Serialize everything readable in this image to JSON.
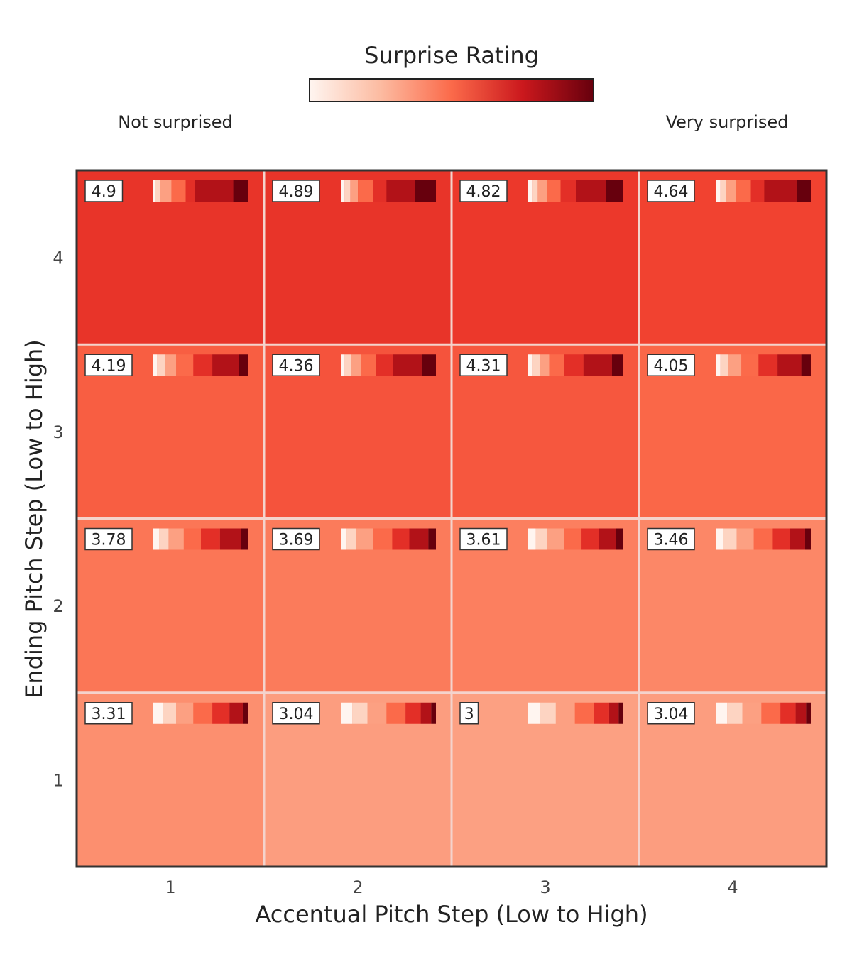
{
  "chart_data": {
    "type": "heatmap",
    "title": "",
    "xlabel": "Accentual Pitch Step (Low to High)",
    "ylabel": "Ending Pitch Step (Low to High)",
    "x_categories": [
      "1",
      "2",
      "3",
      "4"
    ],
    "y_categories": [
      "1",
      "2",
      "3",
      "4"
    ],
    "colorbar": {
      "title": "Surprise Rating",
      "low_label": "Not surprised",
      "high_label": "Very surprised",
      "range": [
        1,
        7
      ],
      "colormap": "Reds"
    },
    "grid": true,
    "cells": [
      {
        "x": 1,
        "y": 4,
        "value": 4.9,
        "label": "4.9",
        "distribution": [
          0.02,
          0.05,
          0.12,
          0.15,
          0.1,
          0.4,
          0.16
        ]
      },
      {
        "x": 2,
        "y": 4,
        "value": 4.89,
        "label": "4.89",
        "distribution": [
          0.04,
          0.06,
          0.08,
          0.16,
          0.14,
          0.3,
          0.22
        ]
      },
      {
        "x": 3,
        "y": 4,
        "value": 4.82,
        "label": "4.82",
        "distribution": [
          0.04,
          0.06,
          0.1,
          0.14,
          0.16,
          0.32,
          0.18
        ]
      },
      {
        "x": 4,
        "y": 4,
        "value": 4.64,
        "label": "4.64",
        "distribution": [
          0.05,
          0.06,
          0.1,
          0.16,
          0.14,
          0.34,
          0.15
        ]
      },
      {
        "x": 1,
        "y": 3,
        "value": 4.19,
        "label": "4.19",
        "distribution": [
          0.04,
          0.08,
          0.12,
          0.18,
          0.2,
          0.28,
          0.1
        ]
      },
      {
        "x": 2,
        "y": 3,
        "value": 4.36,
        "label": "4.36",
        "distribution": [
          0.04,
          0.07,
          0.1,
          0.16,
          0.18,
          0.3,
          0.15
        ]
      },
      {
        "x": 3,
        "y": 3,
        "value": 4.31,
        "label": "4.31",
        "distribution": [
          0.04,
          0.08,
          0.1,
          0.16,
          0.2,
          0.3,
          0.12
        ]
      },
      {
        "x": 4,
        "y": 3,
        "value": 4.05,
        "label": "4.05",
        "distribution": [
          0.05,
          0.08,
          0.14,
          0.18,
          0.2,
          0.25,
          0.1
        ]
      },
      {
        "x": 1,
        "y": 2,
        "value": 3.78,
        "label": "3.78",
        "distribution": [
          0.06,
          0.1,
          0.16,
          0.18,
          0.2,
          0.22,
          0.08
        ]
      },
      {
        "x": 2,
        "y": 2,
        "value": 3.69,
        "label": "3.69",
        "distribution": [
          0.06,
          0.1,
          0.18,
          0.2,
          0.18,
          0.2,
          0.08
        ]
      },
      {
        "x": 3,
        "y": 2,
        "value": 3.61,
        "label": "3.61",
        "distribution": [
          0.08,
          0.12,
          0.18,
          0.18,
          0.18,
          0.18,
          0.08
        ]
      },
      {
        "x": 4,
        "y": 2,
        "value": 3.46,
        "label": "3.46",
        "distribution": [
          0.08,
          0.14,
          0.18,
          0.2,
          0.18,
          0.16,
          0.06
        ]
      },
      {
        "x": 1,
        "y": 1,
        "value": 3.31,
        "label": "3.31",
        "distribution": [
          0.1,
          0.14,
          0.18,
          0.2,
          0.18,
          0.14,
          0.06
        ]
      },
      {
        "x": 2,
        "y": 1,
        "value": 3.04,
        "label": "3.04",
        "distribution": [
          0.12,
          0.16,
          0.2,
          0.2,
          0.16,
          0.11,
          0.05
        ]
      },
      {
        "x": 3,
        "y": 1,
        "value": 3,
        "label": "3",
        "distribution": [
          0.12,
          0.17,
          0.2,
          0.2,
          0.16,
          0.1,
          0.05
        ]
      },
      {
        "x": 4,
        "y": 1,
        "value": 3.04,
        "label": "3.04",
        "distribution": [
          0.12,
          0.16,
          0.2,
          0.2,
          0.16,
          0.11,
          0.05
        ]
      }
    ]
  }
}
